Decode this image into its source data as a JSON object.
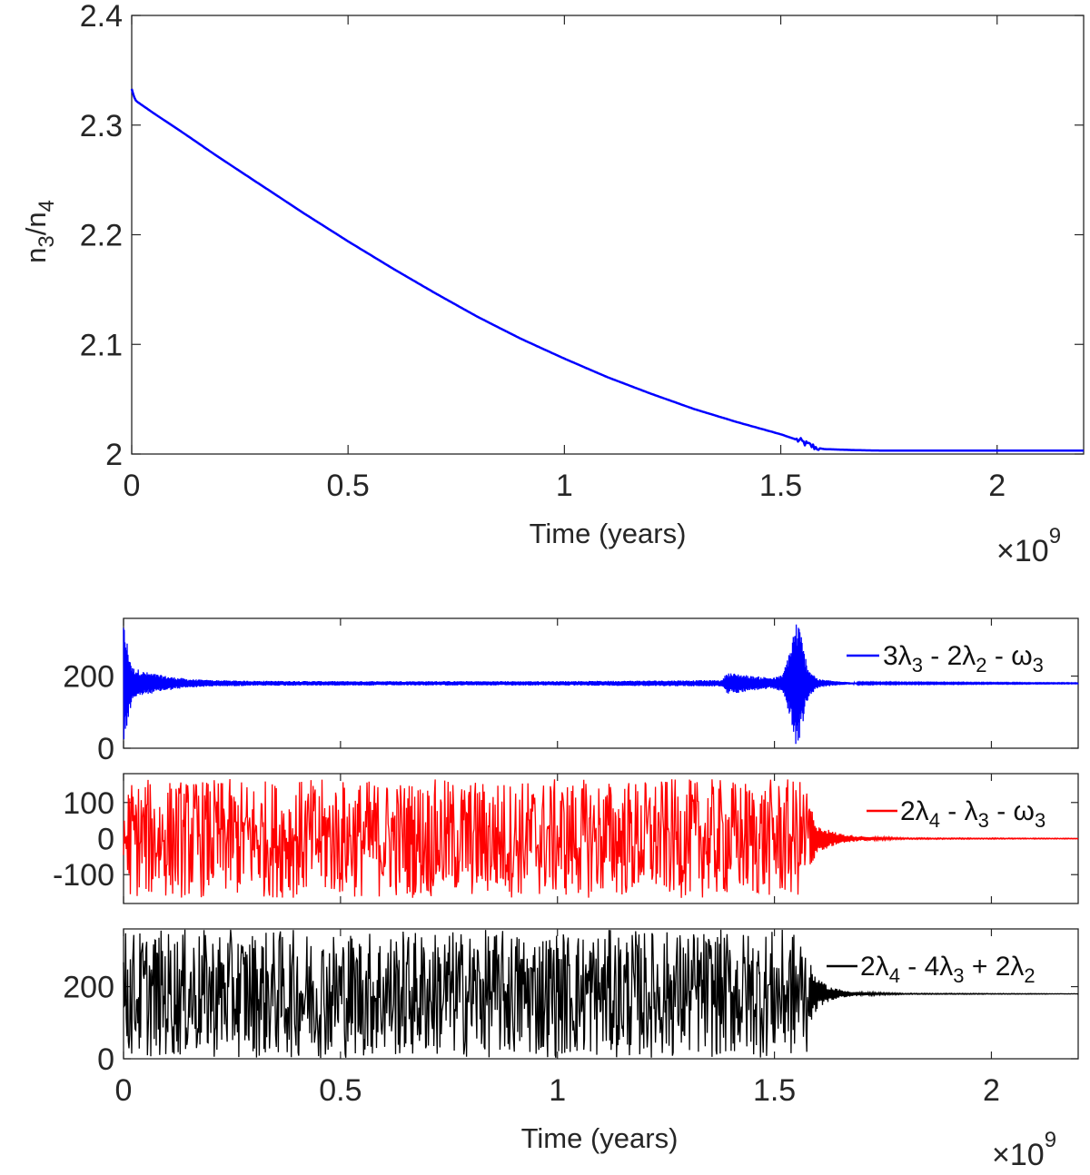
{
  "chart_data": [
    {
      "type": "line",
      "xlabel": "Time (years)",
      "ylabel": "n3/n4",
      "ylabel_parts": [
        "n",
        "3",
        "/n",
        "4"
      ],
      "x_multiplier": "×10^9",
      "x_multiplier_base": "×10",
      "x_multiplier_exp": "9",
      "xlim": [
        0,
        2.2
      ],
      "ylim": [
        2.0,
        2.4
      ],
      "xticks": [
        "0",
        "0.5",
        "1",
        "1.5",
        "2"
      ],
      "yticks": [
        "2",
        "2.1",
        "2.2",
        "2.3",
        "2.4"
      ],
      "grid": false,
      "series": [
        {
          "color": "#0000ff",
          "x": [
            0,
            0.005,
            0.01,
            0.05,
            0.1,
            0.2,
            0.3,
            0.4,
            0.5,
            0.6,
            0.7,
            0.8,
            0.9,
            1.0,
            1.1,
            1.2,
            1.3,
            1.4,
            1.5,
            1.53,
            1.55,
            1.56,
            1.58,
            1.6,
            1.65,
            1.7,
            1.75,
            1.8,
            1.9,
            2.0,
            2.1,
            2.2
          ],
          "y": [
            2.333,
            2.326,
            2.322,
            2.311,
            2.298,
            2.271,
            2.245,
            2.219,
            2.194,
            2.17,
            2.147,
            2.125,
            2.105,
            2.087,
            2.07,
            2.055,
            2.041,
            2.029,
            2.018,
            2.014,
            2.011,
            2.009,
            2.006,
            2.0045,
            2.0038,
            2.0033,
            2.0031,
            2.0031,
            2.0031,
            2.0031,
            2.0031,
            2.0031
          ],
          "disturbance_x": [
            1.535,
            1.59
          ],
          "disturbance_amp": 0.003
        }
      ]
    },
    {
      "type": "line",
      "xlim": [
        0,
        2.2
      ],
      "ylim": [
        0,
        360
      ],
      "yticks": [
        "0",
        "200"
      ],
      "grid": false,
      "legend": "3λ3 - 2λ2 - ω3",
      "legend_location": "top-right",
      "series": [
        {
          "name": "3λ3 - 2λ2 - ω3",
          "color": "#0000ff",
          "center": 180,
          "envelope_x": [
            0,
            0.02,
            0.05,
            0.1,
            0.15,
            0.2,
            0.3,
            0.5,
            1.0,
            1.38,
            1.39,
            1.42,
            1.45,
            1.5,
            1.52,
            1.54,
            1.55,
            1.56,
            1.57,
            1.58,
            1.6,
            1.65,
            1.7,
            2.2
          ],
          "envelope_amp": [
            170,
            45,
            32,
            20,
            12,
            9,
            7,
            6,
            6,
            9,
            30,
            26,
            20,
            16,
            25,
            120,
            180,
            150,
            80,
            40,
            12,
            5,
            2,
            1
          ]
        }
      ]
    },
    {
      "type": "line",
      "xlim": [
        0,
        2.2
      ],
      "ylim": [
        -180,
        180
      ],
      "yticks": [
        "-100",
        "0",
        "100"
      ],
      "grid": false,
      "legend": "2λ4 - λ3 - ω3",
      "legend_location": "top-right",
      "series": [
        {
          "name": "2λ4 - λ3 - ω3",
          "color": "#ff0000",
          "center": 0,
          "chaotic_until": 1.58,
          "chaotic_range": [
            -165,
            165
          ],
          "decay_x": [
            1.58,
            1.6,
            1.63,
            1.66,
            1.7,
            1.75,
            1.8,
            2.2
          ],
          "decay_amp": [
            100,
            40,
            22,
            12,
            7,
            4,
            2,
            1
          ]
        }
      ]
    },
    {
      "type": "line",
      "xlabel": "Time (years)",
      "x_multiplier": "×10^9",
      "x_multiplier_base": "×10",
      "x_multiplier_exp": "9",
      "xlim": [
        0,
        2.2
      ],
      "ylim": [
        0,
        360
      ],
      "xticks": [
        "0",
        "0.5",
        "1",
        "1.5",
        "2"
      ],
      "yticks": [
        "0",
        "200"
      ],
      "grid": false,
      "legend": "2λ4 - 4λ3 + 2λ2",
      "legend_location": "top-right",
      "series": [
        {
          "name": "2λ4 - 4λ3 + 2λ2",
          "color": "#000000",
          "center": 180,
          "chaotic_until": 1.58,
          "chaotic_range": [
            2,
            358
          ],
          "decay_x": [
            1.58,
            1.6,
            1.63,
            1.66,
            1.7,
            1.75,
            1.8,
            2.2
          ],
          "decay_amp": [
            90,
            40,
            20,
            10,
            5,
            3,
            1.5,
            0.5
          ]
        }
      ]
    }
  ]
}
